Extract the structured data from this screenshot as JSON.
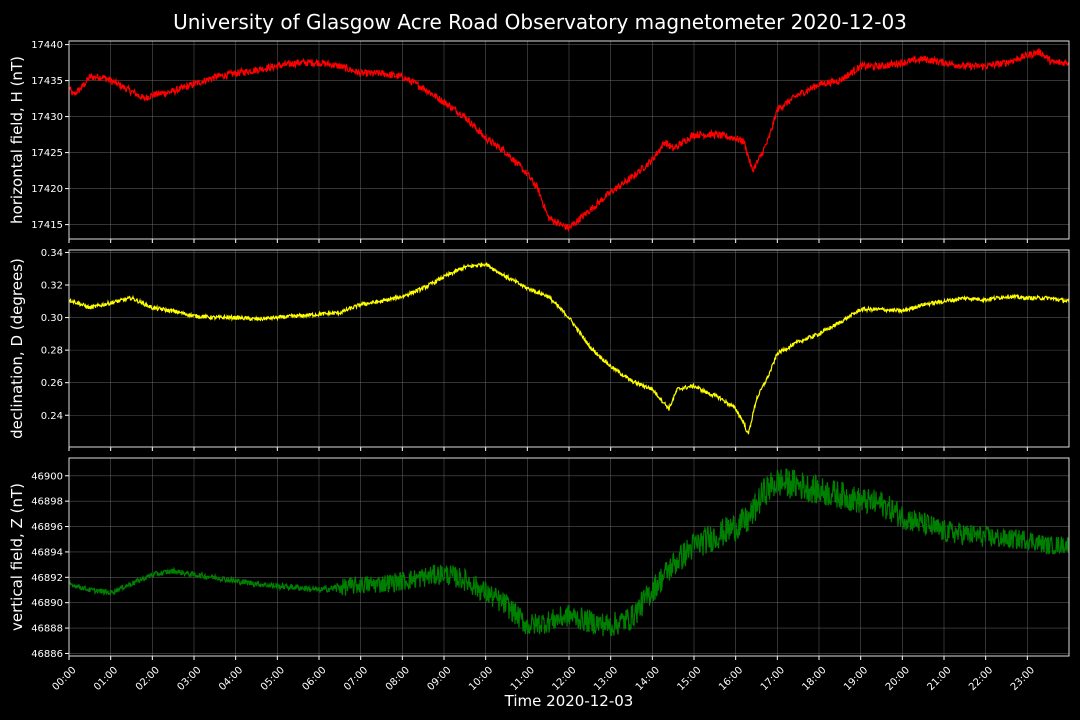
{
  "chart_data": {
    "type": "line",
    "title": "University of Glasgow Acre Road Observatory magnetometer 2020-12-03",
    "xlabel": "Time 2020-12-03",
    "x_ticks": [
      "00:00",
      "01:00",
      "02:00",
      "03:00",
      "04:00",
      "05:00",
      "06:00",
      "07:00",
      "08:00",
      "09:00",
      "10:00",
      "11:00",
      "12:00",
      "13:00",
      "14:00",
      "15:00",
      "16:00",
      "17:00",
      "18:00",
      "19:00",
      "20:00",
      "21:00",
      "22:00",
      "23:00"
    ],
    "xlim_hours": [
      0,
      24
    ],
    "grid": true,
    "panels": [
      {
        "name": "H",
        "ylabel": "horizontal field, H (nT)",
        "color": "#ff0000",
        "ylim": [
          17413,
          17440.5
        ],
        "yticks": [
          17415,
          17420,
          17425,
          17430,
          17435,
          17440
        ],
        "tick_decimals": 0,
        "noise": 0.5,
        "hours": [
          0,
          0.1,
          0.3,
          0.5,
          0.8,
          1.0,
          1.5,
          1.8,
          2.0,
          2.5,
          3.0,
          3.5,
          4.0,
          4.5,
          5.0,
          5.5,
          6.0,
          6.5,
          7.0,
          7.5,
          8.0,
          8.5,
          9.0,
          9.5,
          10.0,
          10.5,
          11.0,
          11.25,
          11.5,
          11.8,
          12.0,
          12.5,
          13.0,
          13.5,
          14.0,
          14.3,
          14.5,
          15.0,
          15.5,
          16.0,
          16.2,
          16.4,
          16.6,
          16.8,
          17.0,
          17.5,
          18.0,
          18.5,
          19.0,
          19.5,
          20.0,
          20.5,
          21.0,
          21.5,
          22.0,
          22.5,
          23.0,
          23.3,
          23.6,
          24.0
        ],
        "values": [
          17434,
          17433,
          17434,
          17435.5,
          17435.5,
          17435,
          17433.5,
          17432.5,
          17433,
          17433.5,
          17434.5,
          17435.5,
          17436,
          17436.5,
          17437,
          17437.5,
          17437.5,
          17437,
          17436,
          17436,
          17435.5,
          17434,
          17432,
          17430,
          17427,
          17425,
          17422,
          17420,
          17416,
          17415,
          17414.5,
          17417,
          17419.5,
          17421.5,
          17424,
          17426.5,
          17425.5,
          17427.5,
          17427.5,
          17427,
          17426.5,
          17422.5,
          17424.5,
          17427,
          17431,
          17433,
          17434.5,
          17435,
          17437,
          17437,
          17437.5,
          17438,
          17437.5,
          17437,
          17437,
          17437.5,
          17438.5,
          17439,
          17437.5,
          17437.5
        ]
      },
      {
        "name": "D",
        "ylabel": "declination, D (degrees)",
        "color": "#ffff00",
        "ylim": [
          0.2205,
          0.3415
        ],
        "yticks": [
          0.24,
          0.26,
          0.28,
          0.3,
          0.32,
          0.34
        ],
        "tick_decimals": 2,
        "noise": 0.0012,
        "hours": [
          0,
          0.2,
          0.5,
          1.0,
          1.5,
          2.0,
          2.5,
          3.0,
          3.5,
          4.0,
          4.5,
          5.0,
          5.5,
          6.0,
          6.5,
          7.0,
          7.5,
          8.0,
          8.5,
          9.0,
          9.5,
          10.0,
          10.3,
          10.5,
          11.0,
          11.5,
          12.0,
          12.5,
          13.0,
          13.5,
          14.0,
          14.2,
          14.4,
          14.6,
          15.0,
          15.3,
          15.6,
          16.0,
          16.2,
          16.3,
          16.5,
          16.8,
          17.0,
          17.5,
          18.0,
          18.5,
          19.0,
          19.5,
          20.0,
          20.5,
          21.0,
          21.5,
          22.0,
          22.5,
          23.0,
          23.5,
          24.0
        ],
        "values": [
          0.311,
          0.309,
          0.306,
          0.309,
          0.312,
          0.306,
          0.304,
          0.301,
          0.3,
          0.3,
          0.299,
          0.3,
          0.301,
          0.302,
          0.303,
          0.308,
          0.31,
          0.313,
          0.318,
          0.325,
          0.331,
          0.333,
          0.328,
          0.325,
          0.318,
          0.313,
          0.3,
          0.282,
          0.27,
          0.261,
          0.256,
          0.25,
          0.244,
          0.256,
          0.258,
          0.254,
          0.251,
          0.244,
          0.235,
          0.228,
          0.25,
          0.265,
          0.278,
          0.285,
          0.29,
          0.297,
          0.305,
          0.305,
          0.304,
          0.308,
          0.31,
          0.312,
          0.311,
          0.313,
          0.312,
          0.312,
          0.31
        ]
      },
      {
        "name": "Z",
        "ylabel": "vertical field, Z (nT)",
        "color": "#008000",
        "ylim": [
          46885.8,
          46901.4
        ],
        "yticks": [
          46886,
          46888,
          46890,
          46892,
          46894,
          46896,
          46898,
          46900
        ],
        "tick_decimals": 0,
        "noise_by_hour": [
          [
            0,
            0.2
          ],
          [
            6.3,
            0.25
          ],
          [
            6.6,
            0.7
          ],
          [
            10.0,
            0.9
          ],
          [
            12.0,
            0.9
          ],
          [
            13.5,
            1.0
          ],
          [
            15.0,
            1.1
          ],
          [
            17.0,
            1.2
          ],
          [
            20.0,
            1.0
          ],
          [
            24.0,
            0.7
          ]
        ],
        "hours": [
          0,
          0.5,
          1.0,
          1.5,
          2.0,
          2.5,
          3.0,
          3.5,
          4.0,
          4.5,
          5.0,
          5.5,
          6.0,
          6.5,
          7.0,
          7.5,
          8.0,
          8.5,
          9.0,
          9.5,
          10.0,
          10.5,
          11.0,
          11.5,
          12.0,
          12.5,
          13.0,
          13.5,
          14.0,
          14.5,
          15.0,
          15.5,
          16.0,
          16.3,
          16.7,
          17.0,
          17.5,
          18.0,
          18.5,
          19.0,
          19.5,
          20.0,
          20.5,
          21.0,
          21.5,
          22.0,
          22.5,
          23.0,
          23.5,
          24.0
        ],
        "values": [
          46891.5,
          46891.0,
          46890.8,
          46891.5,
          46892.2,
          46892.5,
          46892.2,
          46892.0,
          46891.7,
          46891.5,
          46891.3,
          46891.2,
          46891.0,
          46891.2,
          46891.4,
          46891.5,
          46891.7,
          46892.0,
          46892.3,
          46891.8,
          46890.8,
          46889.8,
          46888.2,
          46888.5,
          46889.0,
          46888.5,
          46888.2,
          46888.8,
          46891.0,
          46893.0,
          46894.5,
          46895.2,
          46896.0,
          46896.5,
          46898.8,
          46899.5,
          46899.3,
          46898.8,
          46898.5,
          46898.0,
          46897.8,
          46896.8,
          46896.2,
          46895.6,
          46895.4,
          46895.2,
          46895.0,
          46895.0,
          46894.5,
          46894.6
        ]
      }
    ]
  }
}
